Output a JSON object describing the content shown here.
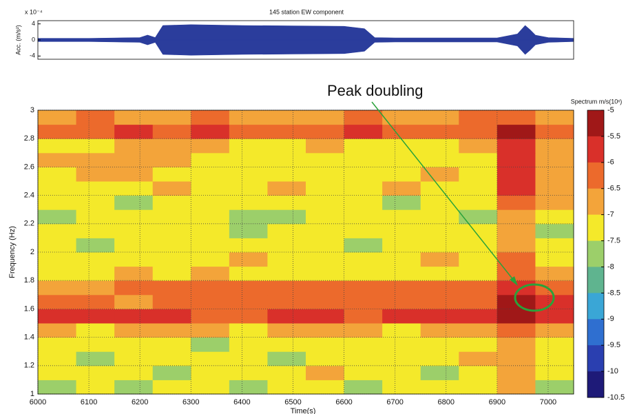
{
  "chart_data": [
    {
      "type": "area",
      "title": "145 station EW component",
      "ylabel": "Acc. (m/s²)",
      "y_multiplier": "x 10⁻⁴",
      "x": [
        6000,
        6100,
        6200,
        6215,
        6230,
        6245,
        6300,
        6400,
        6500,
        6600,
        6640,
        6660,
        6700,
        6800,
        6900,
        6940,
        6955,
        6965,
        6975,
        7000,
        7050
      ],
      "values": [
        0.4,
        0.4,
        0.6,
        1.2,
        0.6,
        3.6,
        3.8,
        3.6,
        3.5,
        3.4,
        2.8,
        0.6,
        0.5,
        0.5,
        0.5,
        1.5,
        3.6,
        2.5,
        1.2,
        0.6,
        0.4
      ],
      "color": "#2b3d9c",
      "xlim": [
        6000,
        7050
      ],
      "ylim": [
        -4.8,
        4.8
      ],
      "yticks": [
        -4,
        0,
        4
      ]
    },
    {
      "type": "heatmap",
      "xlabel": "Time(s)",
      "ylabel": "Frequency (Hz)",
      "annotation": "Peak doubling",
      "x_edges": [
        6000,
        6075,
        6150,
        6225,
        6300,
        6375,
        6450,
        6525,
        6600,
        6675,
        6750,
        6825,
        6900,
        6975,
        7050
      ],
      "y_edges": [
        1,
        1.1,
        1.2,
        1.3,
        1.4,
        1.5,
        1.6,
        1.7,
        1.8,
        1.9,
        2,
        2.1,
        2.2,
        2.3,
        2.4,
        2.5,
        2.6,
        2.7,
        2.8,
        2.9,
        3
      ],
      "z": [
        [
          -7.6,
          -7.2,
          -7.6,
          -7.2,
          -7.2,
          -7.6,
          -7.2,
          -7.2,
          -7.6,
          -7.2,
          -7.2,
          -7.2,
          -6.8,
          -7.6
        ],
        [
          -7.2,
          -7.2,
          -7.2,
          -7.6,
          -7.2,
          -7.2,
          -7.2,
          -6.8,
          -7.2,
          -7.2,
          -7.6,
          -7.2,
          -6.8,
          -7.2
        ],
        [
          -7.2,
          -7.6,
          -7.2,
          -7.2,
          -7.2,
          -7.2,
          -7.6,
          -7.2,
          -7.2,
          -7.2,
          -7.2,
          -6.8,
          -6.8,
          -7.2
        ],
        [
          -7.2,
          -7.2,
          -7.2,
          -7.2,
          -7.6,
          -7.2,
          -7.2,
          -7.2,
          -7.2,
          -7.2,
          -7.2,
          -7.2,
          -6.8,
          -7.2
        ],
        [
          -6.8,
          -7.2,
          -6.8,
          -6.8,
          -6.8,
          -7.2,
          -6.8,
          -6.8,
          -6.8,
          -7.2,
          -6.8,
          -6.8,
          -6.3,
          -6.8
        ],
        [
          -5.8,
          -5.8,
          -5.8,
          -5.8,
          -6.2,
          -6.2,
          -5.8,
          -5.8,
          -6.2,
          -5.8,
          -5.8,
          -5.8,
          -5.3,
          -5.8
        ],
        [
          -6.3,
          -6.3,
          -6.8,
          -6.3,
          -6.3,
          -6.3,
          -6.3,
          -6.3,
          -6.3,
          -6.3,
          -6.3,
          -6.3,
          -5.3,
          -5.8
        ],
        [
          -6.8,
          -6.8,
          -6.3,
          -6.3,
          -6.3,
          -6.3,
          -6.3,
          -6.3,
          -6.3,
          -6.3,
          -6.3,
          -6.3,
          -5.8,
          -6.3
        ],
        [
          -7.2,
          -7.2,
          -6.8,
          -7.2,
          -6.8,
          -7.2,
          -7.2,
          -7.2,
          -7.2,
          -7.2,
          -7.2,
          -7.2,
          -6.3,
          -6.8
        ],
        [
          -7.2,
          -7.2,
          -7.2,
          -7.2,
          -7.2,
          -6.8,
          -7.2,
          -7.2,
          -7.2,
          -7.2,
          -6.8,
          -7.2,
          -6.3,
          -7.2
        ],
        [
          -7.2,
          -7.6,
          -7.2,
          -7.2,
          -7.2,
          -7.2,
          -7.2,
          -7.2,
          -7.6,
          -7.2,
          -7.2,
          -7.2,
          -6.8,
          -7.2
        ],
        [
          -7.2,
          -7.2,
          -7.2,
          -7.2,
          -7.2,
          -7.6,
          -7.2,
          -7.2,
          -7.2,
          -7.2,
          -7.2,
          -7.2,
          -6.8,
          -7.6
        ],
        [
          -7.6,
          -7.2,
          -7.2,
          -7.2,
          -7.2,
          -7.6,
          -7.6,
          -7.2,
          -7.2,
          -7.2,
          -7.2,
          -7.6,
          -6.8,
          -7.2
        ],
        [
          -7.2,
          -7.2,
          -7.6,
          -7.2,
          -7.2,
          -7.2,
          -7.2,
          -7.2,
          -7.2,
          -7.6,
          -7.2,
          -7.2,
          -6.3,
          -6.8
        ],
        [
          -7.2,
          -7.2,
          -7.2,
          -6.8,
          -7.2,
          -7.2,
          -6.8,
          -7.2,
          -7.2,
          -6.8,
          -7.2,
          -7.2,
          -5.8,
          -6.8
        ],
        [
          -7.2,
          -6.8,
          -6.8,
          -7.2,
          -7.2,
          -7.2,
          -7.2,
          -7.2,
          -7.2,
          -7.2,
          -6.8,
          -7.2,
          -5.8,
          -6.8
        ],
        [
          -6.8,
          -6.8,
          -6.8,
          -6.8,
          -7.2,
          -7.2,
          -7.2,
          -7.2,
          -7.2,
          -7.2,
          -7.2,
          -7.2,
          -5.8,
          -6.8
        ],
        [
          -7.2,
          -7.2,
          -6.8,
          -6.8,
          -6.8,
          -7.2,
          -7.2,
          -6.8,
          -7.2,
          -7.2,
          -7.2,
          -6.8,
          -5.8,
          -6.8
        ],
        [
          -6.3,
          -6.3,
          -5.8,
          -6.3,
          -5.8,
          -6.3,
          -6.3,
          -6.3,
          -5.8,
          -6.3,
          -6.3,
          -6.3,
          -5.3,
          -6.3
        ],
        [
          -6.8,
          -6.3,
          -6.8,
          -6.8,
          -6.3,
          -6.8,
          -6.8,
          -6.8,
          -6.3,
          -6.8,
          -6.8,
          -6.3,
          -6.3,
          -6.8
        ]
      ],
      "xlim": [
        6000,
        7050
      ],
      "ylim": [
        1,
        3
      ],
      "xticks": [
        6000,
        6100,
        6200,
        6300,
        6400,
        6500,
        6600,
        6700,
        6800,
        6900,
        7000
      ],
      "yticks": [
        1,
        1.2,
        1.4,
        1.6,
        1.8,
        2,
        2.2,
        2.4,
        2.6,
        2.8,
        3
      ],
      "grid": true,
      "colorbar": {
        "title": "Spectrum m/s(10ˣ)",
        "clim": [
          -10.5,
          -5
        ],
        "ticks": [
          -5,
          -5.5,
          -6,
          -6.5,
          -7,
          -7.5,
          -8,
          -8.5,
          -9,
          -9.5,
          -10,
          -10.5
        ],
        "colors": [
          "#a01818",
          "#d9302a",
          "#ec6a2c",
          "#f3a43a",
          "#f4e92a",
          "#9ccf6a",
          "#5fb48f",
          "#3aa6d6",
          "#2f6fd0",
          "#2a3fb0",
          "#1e1a78"
        ]
      }
    }
  ]
}
